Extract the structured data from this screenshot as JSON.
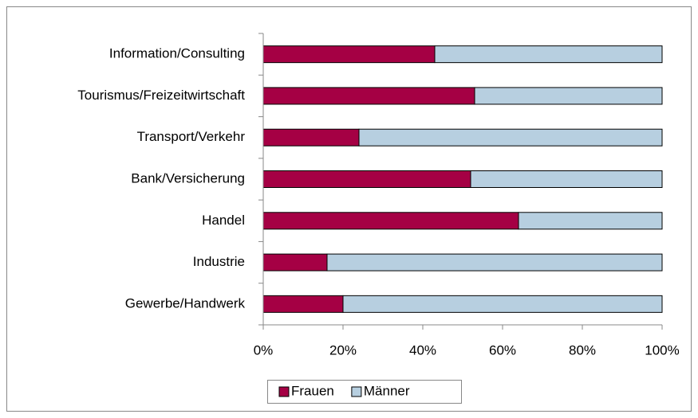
{
  "chart_data": {
    "type": "stacked_barh",
    "categories": [
      "Information/Consulting",
      "Tourismus/Freizeitwirtschaft",
      "Transport/Verkehr",
      "Bank/Versicherung",
      "Handel",
      "Industrie",
      "Gewerbe/Handwerk"
    ],
    "series": [
      {
        "name": "Frauen",
        "color": "#a50044",
        "values": [
          43,
          53,
          24,
          52,
          64,
          16,
          20
        ]
      },
      {
        "name": "Männer",
        "color": "#b7cfe0",
        "values": [
          57,
          47,
          76,
          48,
          36,
          84,
          80
        ]
      }
    ],
    "xlim": [
      0,
      100
    ],
    "xticks": [
      {
        "value": 0,
        "label": "0%"
      },
      {
        "value": 20,
        "label": "20%"
      },
      {
        "value": 40,
        "label": "40%"
      },
      {
        "value": 60,
        "label": "60%"
      },
      {
        "value": 80,
        "label": "80%"
      },
      {
        "value": 100,
        "label": "100%"
      }
    ],
    "legend": "bottom"
  }
}
